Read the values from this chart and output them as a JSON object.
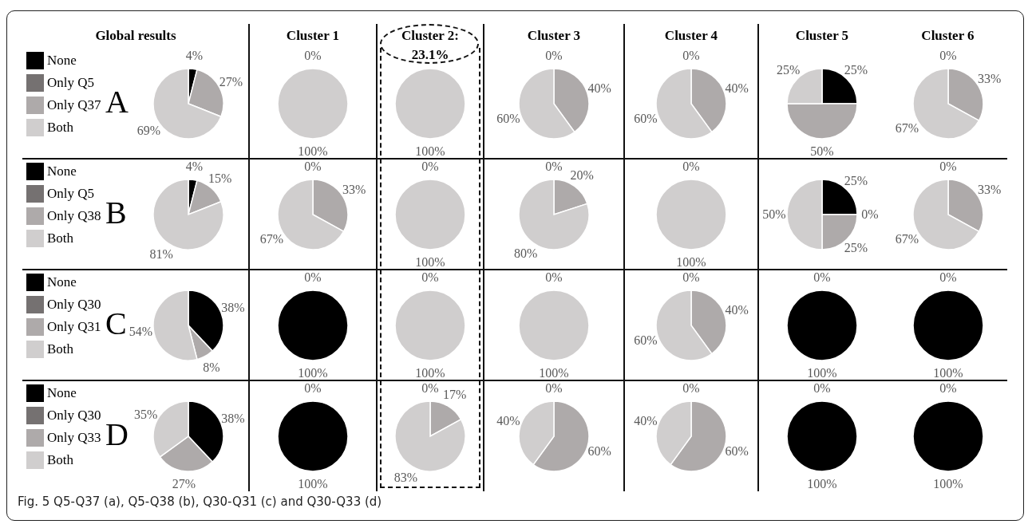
{
  "chart_data": [
    {
      "type": "pie",
      "title": "Global results",
      "categories": [
        "None",
        "Only Q5",
        "Only Q37",
        "Both"
      ],
      "values": [
        4,
        0,
        27,
        69
      ],
      "value_labels": [
        "4%",
        null,
        "27%",
        "69%"
      ],
      "colors": [
        "#000000",
        "#757171",
        "#aeaaaa",
        "#d0cece"
      ],
      "legend": "left",
      "annotations": [
        "A",
        "Fig. 5 Q5-Q37 (a), Q5-Q38 (b), Q30-Q31 (c) and Q30-Q33 (d)"
      ]
    },
    {
      "type": "pie",
      "title": "Cluster 1",
      "categories": [
        null,
        null,
        null,
        null
      ],
      "values": [
        0,
        0,
        0,
        100
      ],
      "value_labels": [
        "0%",
        null,
        null,
        "100%"
      ],
      "colors": [
        "#000000",
        "#757171",
        "#aeaaaa",
        "#d0cece"
      ]
    },
    {
      "type": "pie",
      "title": "Cluster 2: 23.1%",
      "categories": [
        null,
        null,
        null,
        null
      ],
      "values": [
        0,
        0,
        0,
        100
      ],
      "value_labels": [
        null,
        null,
        null,
        "100%"
      ],
      "colors": [
        "#000000",
        "#757171",
        "#aeaaaa",
        "#d0cece"
      ]
    },
    {
      "type": "pie",
      "title": "Cluster 3",
      "categories": [
        null,
        null,
        null,
        null
      ],
      "values": [
        0,
        0,
        40,
        60
      ],
      "value_labels": [
        "0%",
        null,
        "40%",
        "60%"
      ],
      "colors": [
        "#000000",
        "#757171",
        "#aeaaaa",
        "#d0cece"
      ]
    },
    {
      "type": "pie",
      "title": "Cluster 4",
      "categories": [
        null,
        null,
        null,
        null
      ],
      "values": [
        0,
        0,
        40,
        60
      ],
      "value_labels": [
        "0%",
        null,
        "40%",
        "60%"
      ],
      "colors": [
        "#000000",
        "#757171",
        "#aeaaaa",
        "#d0cece"
      ]
    },
    {
      "type": "pie",
      "title": "Cluster 5",
      "categories": [
        null,
        null,
        null,
        null
      ],
      "values": [
        25,
        0,
        50,
        25
      ],
      "value_labels": [
        "25%",
        null,
        "50%",
        "25%"
      ],
      "colors": [
        "#000000",
        "#757171",
        "#aeaaaa",
        "#d0cece"
      ]
    },
    {
      "type": "pie",
      "title": "Cluster 6",
      "categories": [
        null,
        null,
        null,
        null
      ],
      "values": [
        0,
        0,
        33,
        67
      ],
      "value_labels": [
        "0%",
        null,
        "33%",
        "67%"
      ],
      "colors": [
        "#000000",
        "#757171",
        "#aeaaaa",
        "#d0cece"
      ]
    },
    {
      "type": "pie",
      "categories": [
        "None",
        "Only Q5",
        "Only Q38",
        "Both"
      ],
      "values": [
        4,
        0,
        15,
        81
      ],
      "value_labels": [
        "4%",
        null,
        "15%",
        "81%"
      ],
      "colors": [
        "#000000",
        "#757171",
        "#aeaaaa",
        "#d0cece"
      ],
      "legend": "left",
      "annotations": [
        "B"
      ]
    },
    {
      "type": "pie",
      "categories": [
        null,
        null,
        null,
        null
      ],
      "values": [
        0,
        0,
        33,
        67
      ],
      "value_labels": [
        "0%",
        null,
        "33%",
        "67%"
      ],
      "colors": [
        "#000000",
        "#757171",
        "#aeaaaa",
        "#d0cece"
      ]
    },
    {
      "type": "pie",
      "categories": [
        null,
        null,
        null,
        null
      ],
      "values": [
        0,
        0,
        0,
        100
      ],
      "value_labels": [
        "0%",
        null,
        null,
        "100%"
      ],
      "colors": [
        "#000000",
        "#757171",
        "#aeaaaa",
        "#d0cece"
      ]
    },
    {
      "type": "pie",
      "categories": [
        null,
        null,
        null,
        null
      ],
      "values": [
        0,
        0,
        20,
        80
      ],
      "value_labels": [
        "0%",
        null,
        "20%",
        "80%"
      ],
      "colors": [
        "#000000",
        "#757171",
        "#aeaaaa",
        "#d0cece"
      ]
    },
    {
      "type": "pie",
      "categories": [
        null,
        null,
        null,
        null
      ],
      "values": [
        0,
        0,
        0,
        100
      ],
      "value_labels": [
        "0%",
        null,
        null,
        "100%"
      ],
      "colors": [
        "#000000",
        "#757171",
        "#aeaaaa",
        "#d0cece"
      ]
    },
    {
      "type": "pie",
      "categories": [
        null,
        null,
        null,
        null
      ],
      "values": [
        25,
        0,
        25,
        50
      ],
      "value_labels": [
        "25%",
        "0%",
        "25%",
        "50%"
      ],
      "colors": [
        "#000000",
        "#757171",
        "#aeaaaa",
        "#d0cece"
      ]
    },
    {
      "type": "pie",
      "categories": [
        null,
        null,
        null,
        null
      ],
      "values": [
        0,
        0,
        33,
        67
      ],
      "value_labels": [
        "0%",
        null,
        "33%",
        "67%"
      ],
      "colors": [
        "#000000",
        "#757171",
        "#aeaaaa",
        "#d0cece"
      ]
    },
    {
      "type": "pie",
      "categories": [
        "None",
        "Only Q30",
        "Only Q31",
        "Both"
      ],
      "values": [
        38,
        0,
        8,
        54
      ],
      "value_labels": [
        "38%",
        null,
        "8%",
        "54%"
      ],
      "colors": [
        "#000000",
        "#757171",
        "#aeaaaa",
        "#d0cece"
      ],
      "legend": "left",
      "annotations": [
        "C"
      ]
    },
    {
      "type": "pie",
      "categories": [
        null,
        null,
        null,
        null
      ],
      "values": [
        100,
        0,
        0,
        0
      ],
      "value_labels": [
        "100%",
        "0%",
        null,
        null
      ],
      "colors": [
        "#000000",
        "#757171",
        "#aeaaaa",
        "#d0cece"
      ]
    },
    {
      "type": "pie",
      "categories": [
        null,
        null,
        null,
        null
      ],
      "values": [
        0,
        0,
        0,
        100
      ],
      "value_labels": [
        "0%",
        null,
        null,
        "100%"
      ],
      "colors": [
        "#000000",
        "#757171",
        "#aeaaaa",
        "#d0cece"
      ]
    },
    {
      "type": "pie",
      "categories": [
        null,
        null,
        null,
        null
      ],
      "values": [
        0,
        0,
        0,
        100
      ],
      "value_labels": [
        "0%",
        null,
        null,
        "100%"
      ],
      "colors": [
        "#000000",
        "#757171",
        "#aeaaaa",
        "#d0cece"
      ]
    },
    {
      "type": "pie",
      "categories": [
        null,
        null,
        null,
        null
      ],
      "values": [
        0,
        0,
        40,
        60
      ],
      "value_labels": [
        "0%",
        null,
        "40%",
        "60%"
      ],
      "colors": [
        "#000000",
        "#757171",
        "#aeaaaa",
        "#d0cece"
      ]
    },
    {
      "type": "pie",
      "categories": [
        null,
        null,
        null,
        null
      ],
      "values": [
        100,
        0,
        0,
        0
      ],
      "value_labels": [
        "100%",
        "0%",
        null,
        null
      ],
      "colors": [
        "#000000",
        "#757171",
        "#aeaaaa",
        "#d0cece"
      ]
    },
    {
      "type": "pie",
      "categories": [
        null,
        null,
        null,
        null
      ],
      "values": [
        100,
        0,
        0,
        0
      ],
      "value_labels": [
        "100%",
        "0%",
        null,
        null
      ],
      "colors": [
        "#000000",
        "#757171",
        "#aeaaaa",
        "#d0cece"
      ]
    },
    {
      "type": "pie",
      "categories": [
        "None",
        "Only Q30",
        "Only Q33",
        "Both"
      ],
      "values": [
        38,
        0,
        27,
        35
      ],
      "value_labels": [
        "38%",
        null,
        "27%",
        "35%"
      ],
      "colors": [
        "#000000",
        "#757171",
        "#aeaaaa",
        "#d0cece"
      ],
      "legend": "left",
      "annotations": [
        "D"
      ]
    },
    {
      "type": "pie",
      "categories": [
        null,
        null,
        null,
        null
      ],
      "values": [
        100,
        0,
        0,
        0
      ],
      "value_labels": [
        "100%",
        "0%",
        null,
        null
      ],
      "colors": [
        "#000000",
        "#757171",
        "#aeaaaa",
        "#d0cece"
      ]
    },
    {
      "type": "pie",
      "categories": [
        null,
        null,
        null,
        null
      ],
      "values": [
        0,
        0,
        17,
        83
      ],
      "value_labels": [
        "0%",
        null,
        "17%",
        "83%"
      ],
      "colors": [
        "#000000",
        "#757171",
        "#aeaaaa",
        "#d0cece"
      ]
    },
    {
      "type": "pie",
      "categories": [
        null,
        null,
        null,
        null
      ],
      "values": [
        0,
        0,
        60,
        40
      ],
      "value_labels": [
        "0%",
        null,
        "60%",
        "40%"
      ],
      "colors": [
        "#000000",
        "#757171",
        "#aeaaaa",
        "#d0cece"
      ]
    },
    {
      "type": "pie",
      "categories": [
        null,
        null,
        null,
        null
      ],
      "values": [
        0,
        0,
        60,
        40
      ],
      "value_labels": [
        "0%",
        null,
        "60%",
        "40%"
      ],
      "colors": [
        "#000000",
        "#757171",
        "#aeaaaa",
        "#d0cece"
      ]
    },
    {
      "type": "pie",
      "categories": [
        null,
        null,
        null,
        null
      ],
      "values": [
        100,
        0,
        0,
        0
      ],
      "value_labels": [
        "100%",
        "0%",
        null,
        null
      ],
      "colors": [
        "#000000",
        "#757171",
        "#aeaaaa",
        "#d0cece"
      ]
    },
    {
      "type": "pie",
      "categories": [
        null,
        null,
        null,
        null
      ],
      "values": [
        100,
        0,
        0,
        0
      ],
      "value_labels": [
        "100%",
        "0%",
        null,
        null
      ],
      "colors": [
        "#000000",
        "#757171",
        "#aeaaaa",
        "#d0cece"
      ]
    }
  ]
}
